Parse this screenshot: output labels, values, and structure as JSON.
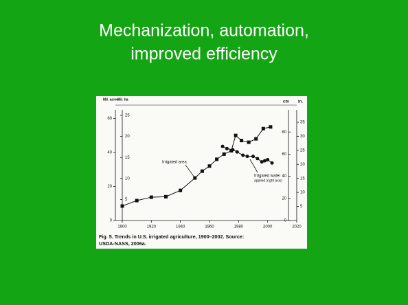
{
  "slide": {
    "title": [
      "Mechanization, automation,",
      "improved efficiency"
    ]
  },
  "chart_data": {
    "type": "line",
    "caption": [
      "Fig. 5. Trends in U.S. irrigated agriculture, 1900–2002. Source:",
      "USDA-NASS, 2006a."
    ],
    "xlim": [
      1900,
      2020
    ],
    "xticks": [
      1900,
      1920,
      1940,
      1960,
      1980,
      2000,
      2020
    ],
    "ylim": [
      0,
      65
    ],
    "yticks": [
      0,
      20,
      40,
      60
    ],
    "y_label": "Mil. acres",
    "ylim_ha": [
      0,
      26.3
    ],
    "yticks_ha": [
      5,
      10,
      15,
      20,
      25
    ],
    "y_label_ha": "Mil. ha",
    "y2lim": [
      0,
      100
    ],
    "y2ticks": [
      0,
      20,
      40,
      60,
      80
    ],
    "y2_label": "cm",
    "y2lim_in": [
      0,
      39.4
    ],
    "y2ticks_in": [
      5,
      10,
      15,
      20,
      25,
      30,
      35
    ],
    "y2_label_in": "in.",
    "series": [
      {
        "name": "Irrigated area",
        "color": "#111111",
        "marker": "square",
        "x": [
          1900,
          1910,
          1920,
          1930,
          1940,
          1950,
          1955,
          1960,
          1965,
          1970,
          1975,
          1978,
          1982,
          1987,
          1992,
          1997,
          2002
        ],
        "values": [
          8.5,
          11.7,
          13.7,
          14,
          17.7,
          25,
          29,
          32,
          36,
          39,
          41,
          50,
          47,
          46,
          48,
          54,
          55
        ]
      },
      {
        "name": "Irrigated water applied (right axis)",
        "color": "#111111",
        "marker": "circle",
        "axis": "y2",
        "x": [
          1969,
          1972,
          1976,
          1979,
          1983,
          1986,
          1990,
          1993,
          1996,
          1998,
          2000,
          2003
        ],
        "values": [
          67,
          65,
          64,
          62,
          59,
          58,
          58,
          56,
          53,
          54,
          55,
          52
        ]
      }
    ],
    "annotations": [
      "Irrigated area",
      "Irrigated water",
      "applied (right axis)"
    ]
  }
}
